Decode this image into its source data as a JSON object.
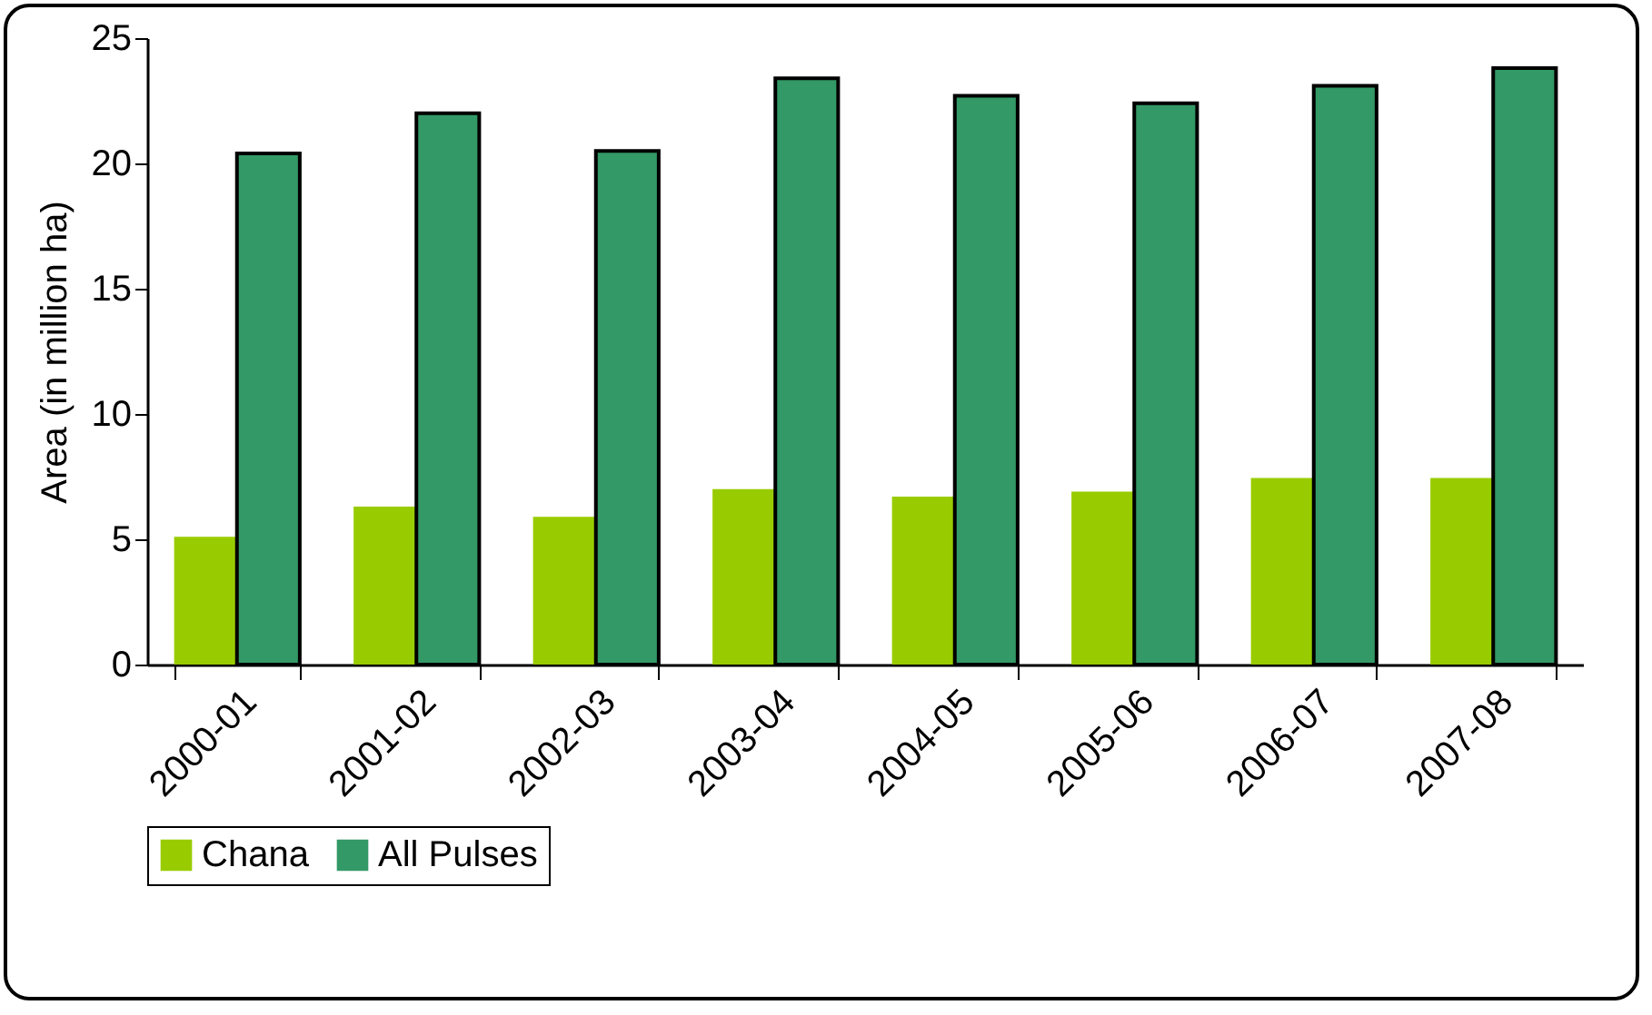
{
  "chart_data": {
    "type": "bar",
    "ylabel": "Area (in million ha)",
    "categories": [
      "2000-01",
      "2001-02",
      "2002-03",
      "2003-04",
      "2004-05",
      "2005-06",
      "2006-07",
      "2007-08"
    ],
    "series": [
      {
        "name": "Chana",
        "color": "#99cc00",
        "values": [
          5.1,
          6.3,
          5.9,
          7.0,
          6.7,
          6.9,
          7.45,
          7.45
        ]
      },
      {
        "name": "All Pulses",
        "color": "#339966",
        "values": [
          20.4,
          22.0,
          20.5,
          23.4,
          22.7,
          22.4,
          23.1,
          23.8
        ]
      }
    ],
    "ylim": [
      0,
      25
    ],
    "yticks": [
      0,
      5,
      10,
      15,
      20,
      25
    ],
    "grid": false,
    "legend": "bottom"
  }
}
